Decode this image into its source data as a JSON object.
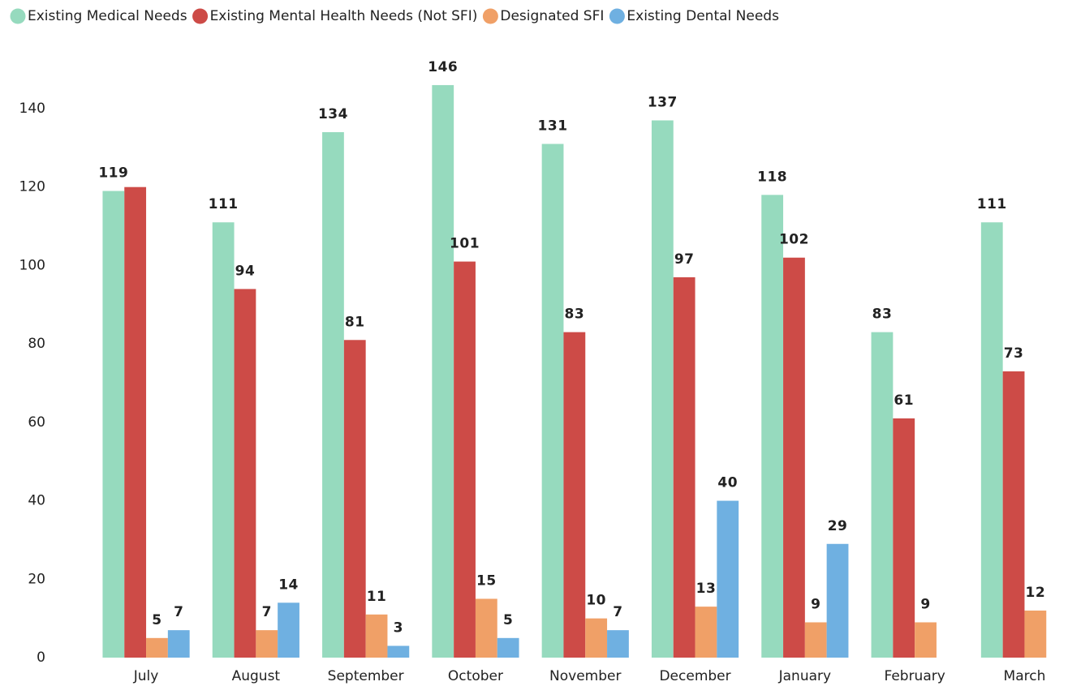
{
  "chart_data": {
    "type": "bar",
    "categories": [
      "July",
      "August",
      "September",
      "October",
      "November",
      "December",
      "January",
      "February",
      "March"
    ],
    "series": [
      {
        "name": "Existing Medical Needs",
        "color": "#96dabe",
        "values": [
          119,
          111,
          134,
          146,
          131,
          137,
          118,
          83,
          111
        ]
      },
      {
        "name": "Existing Mental Health Needs (Not SFI)",
        "color": "#cd4b47",
        "values": [
          120,
          94,
          81,
          101,
          83,
          97,
          102,
          61,
          73
        ],
        "value_labels": [
          null,
          "94",
          "81",
          "101",
          "83",
          "97",
          "102",
          "61",
          "73"
        ]
      },
      {
        "name": "Designated SFI",
        "color": "#f0a067",
        "values": [
          5,
          7,
          11,
          15,
          10,
          13,
          9,
          9,
          12
        ]
      },
      {
        "name": "Existing Dental Needs",
        "color": "#6fb0e1",
        "values": [
          7,
          14,
          3,
          5,
          7,
          40,
          29,
          null,
          null
        ]
      }
    ],
    "ylim": [
      0,
      150
    ],
    "yticks": [
      0,
      20,
      40,
      60,
      80,
      100,
      120,
      140
    ],
    "legend": "top-left",
    "grid": false
  }
}
